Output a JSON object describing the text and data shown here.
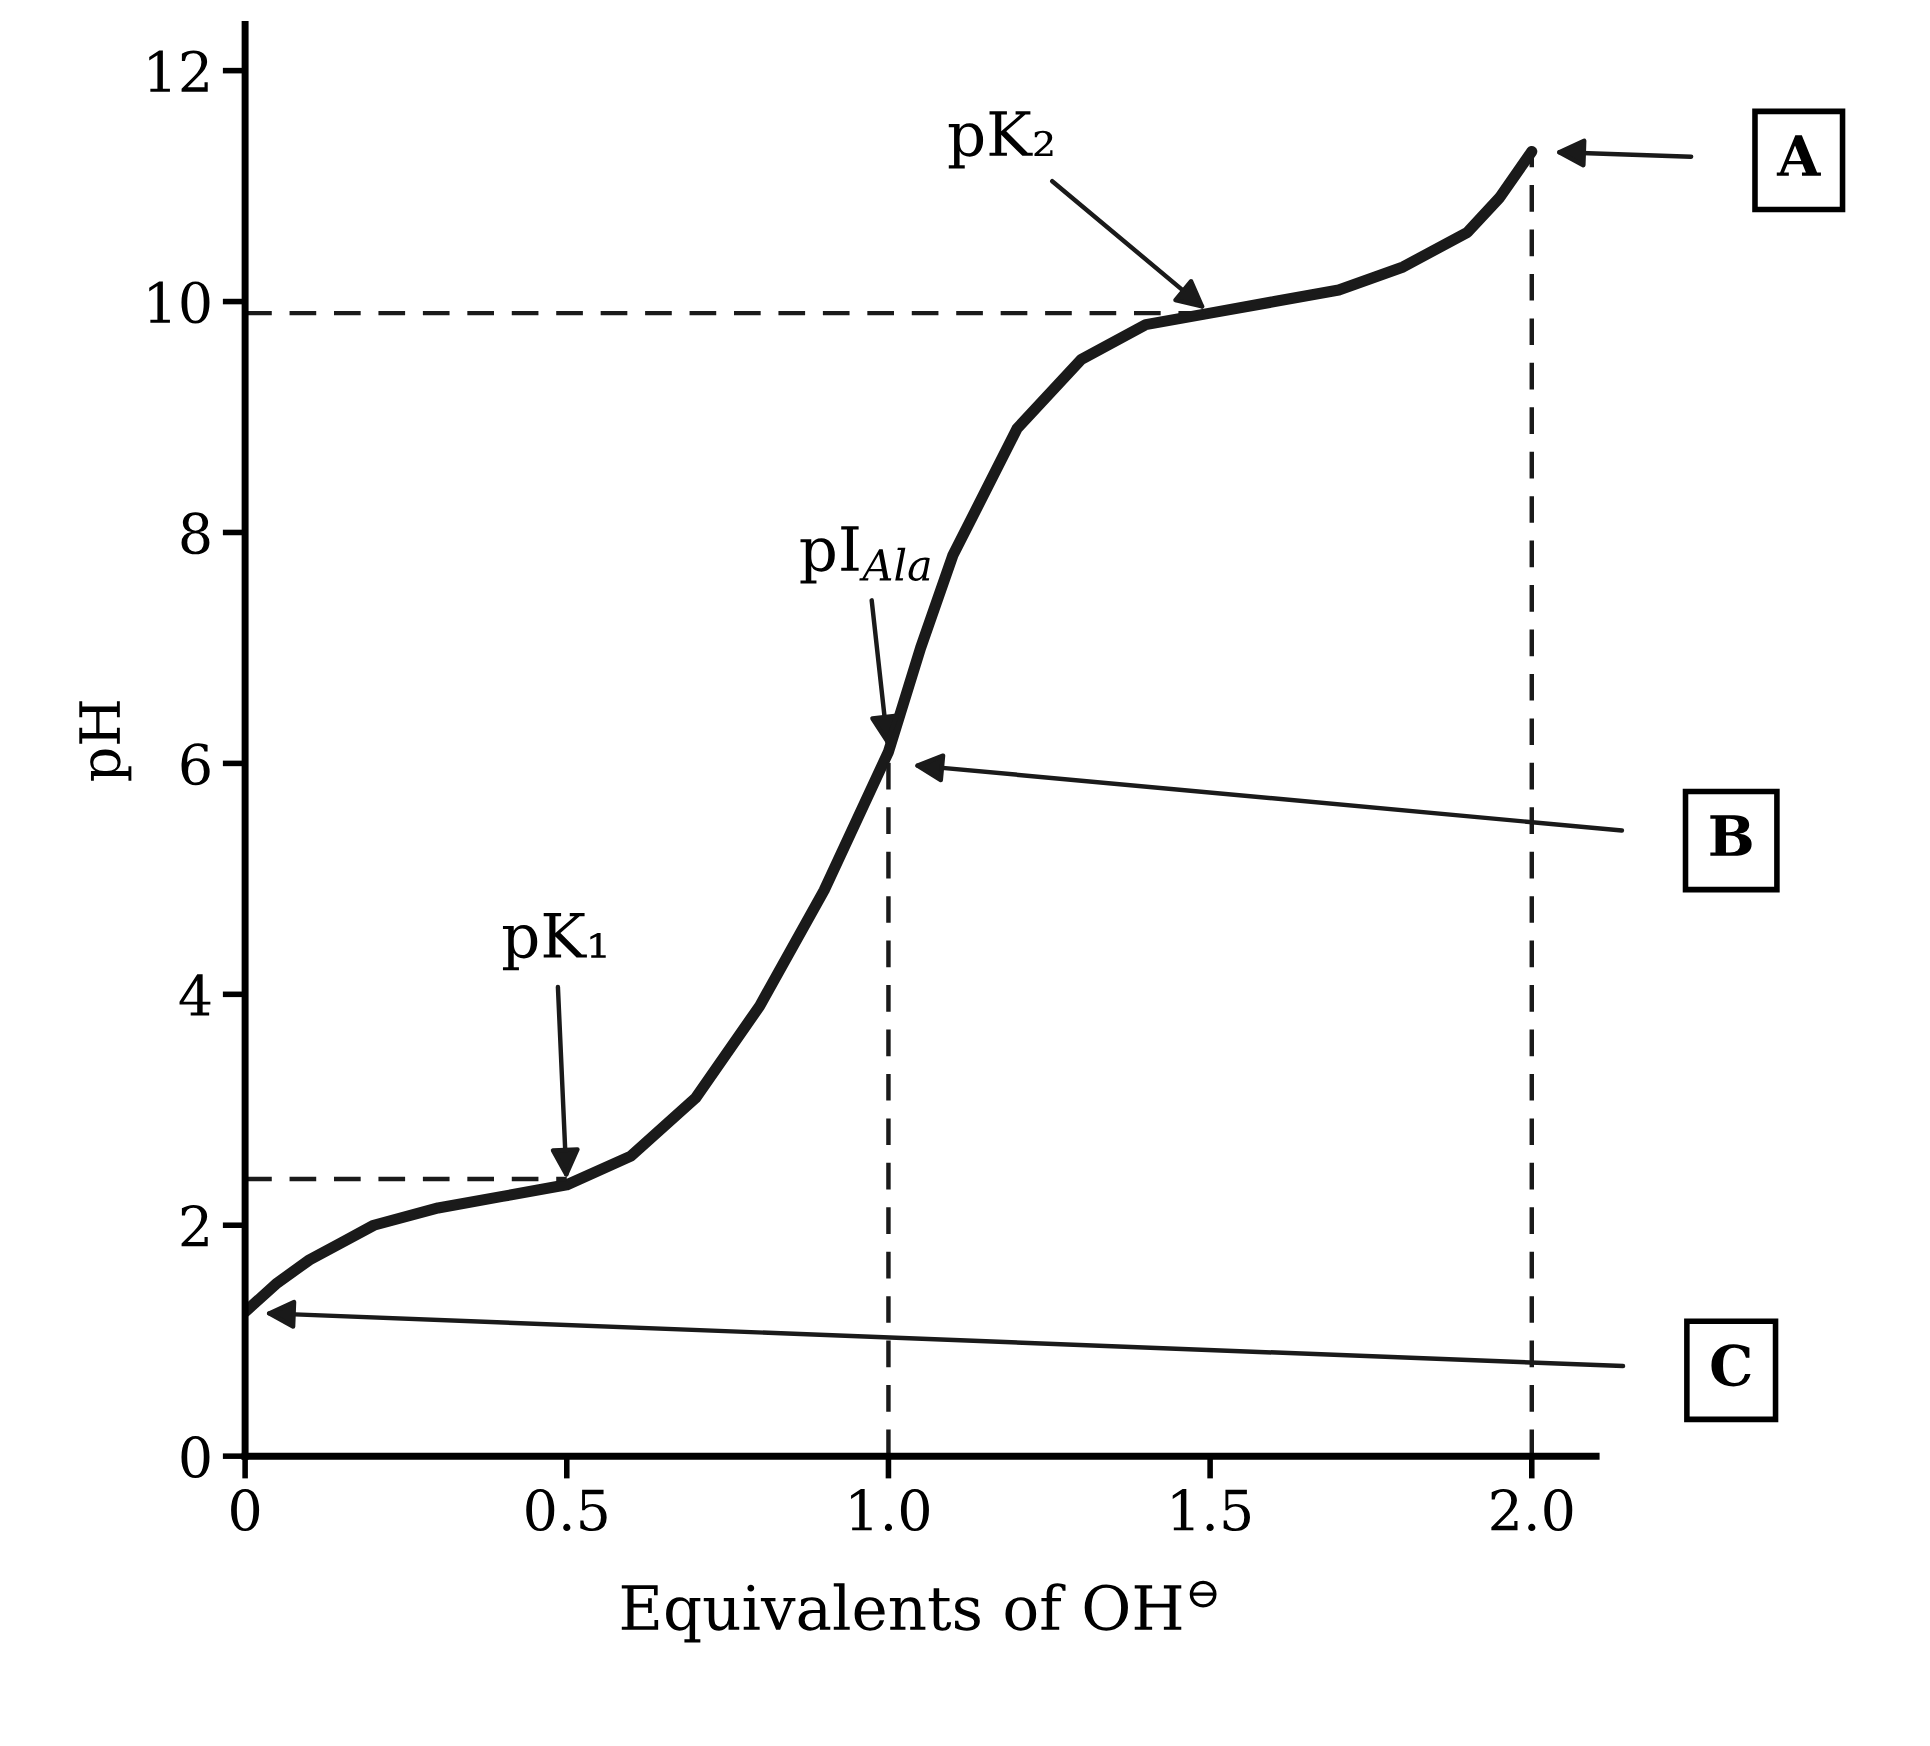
{
  "chart_data": {
    "type": "line",
    "xlabel": "Equivalents of OH$^{⊖}$",
    "ylabel": "pH",
    "xlim": [
      0,
      2.1
    ],
    "ylim": [
      0,
      12.4
    ],
    "xticks": [
      0,
      0.5,
      {
        "value": 1.0,
        "label": "1.0"
      },
      1.5,
      {
        "value": 2.0,
        "label": "2.0"
      }
    ],
    "yticks": [
      0,
      2,
      4,
      6,
      8,
      10,
      12
    ],
    "grid": false,
    "legend": false,
    "marker": "none",
    "series": [
      {
        "color": "#1a1a1a",
        "line_style": "solid",
        "x": [
          0,
          0.05,
          0.1,
          0.15,
          0.2,
          0.3,
          0.4,
          0.5,
          0.6,
          0.7,
          0.8,
          0.9,
          0.95,
          1.0,
          1.05,
          1.1,
          1.2,
          1.3,
          1.4,
          1.5,
          1.6,
          1.7,
          1.8,
          1.9,
          1.95,
          2.0
        ],
        "values": [
          1.25,
          1.5,
          1.7,
          1.85,
          2.0,
          2.15,
          2.25,
          2.35,
          2.6,
          3.1,
          3.9,
          4.9,
          5.5,
          6.1,
          7.0,
          7.8,
          8.9,
          9.5,
          9.8,
          9.9,
          10.0,
          10.1,
          10.3,
          10.6,
          10.9,
          11.3
        ]
      },
      {
        "color": "#1a1a1a",
        "line_style": "dashed",
        "x": [
          0,
          1.5
        ],
        "values": [
          9.9,
          9.9
        ]
      },
      {
        "color": "#1a1a1a",
        "line_style": "dashed",
        "x": [
          0,
          0.5
        ],
        "values": [
          2.4,
          2.4
        ]
      },
      {
        "color": "#1a1a1a",
        "line_style": "dashed",
        "x": [
          1.0,
          1.0
        ],
        "values": [
          0,
          6.1
        ]
      },
      {
        "color": "#1a1a1a",
        "line_style": "dashed",
        "x": [
          2.0,
          2.0
        ],
        "values": [
          0,
          11.3
        ]
      }
    ],
    "annotations": [
      {
        "text": "pK₂",
        "x": 1.5,
        "y": 9.9
      },
      {
        "text": "pI$_{Ala}$",
        "x": 1.0,
        "y": 6.1
      },
      {
        "text": "pK₁",
        "x": 0.5,
        "y": 2.35
      },
      "A",
      "B",
      "C"
    ]
  }
}
